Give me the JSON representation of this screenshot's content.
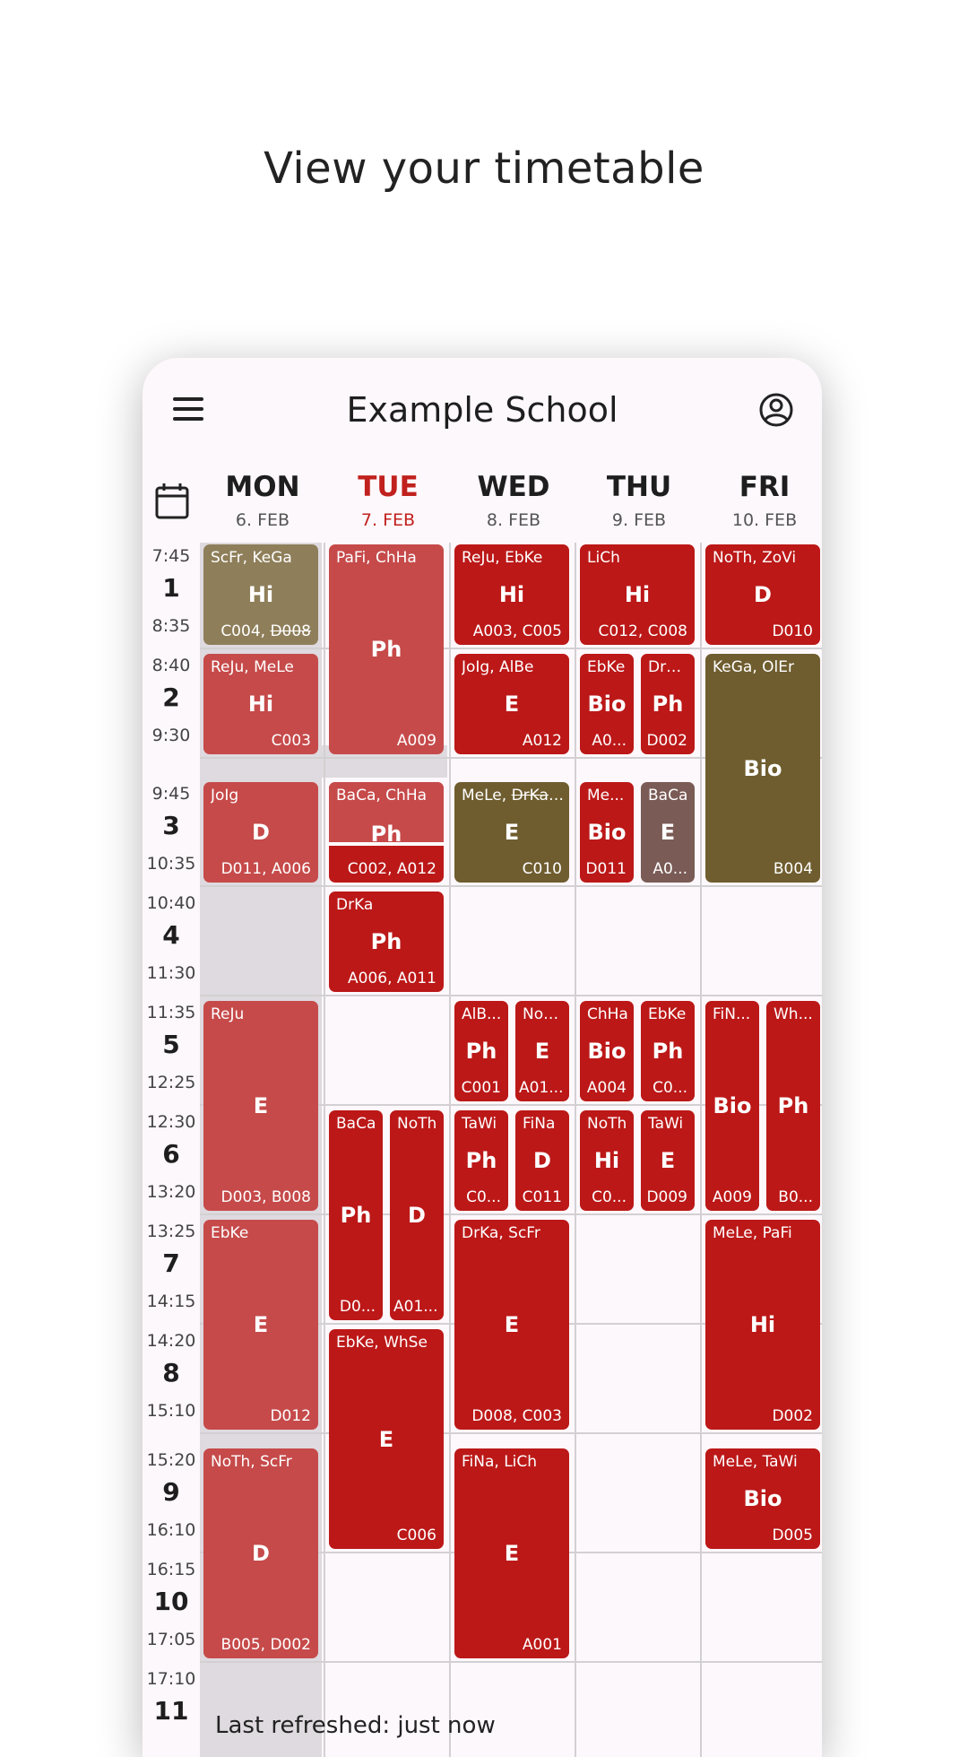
{
  "headline": "View your timetable",
  "app": {
    "title": "Example School",
    "menu_icon": "menu-icon",
    "account_icon": "account-circle-icon",
    "calendar_icon": "calendar-icon"
  },
  "colors": {
    "accent": "#c1211e",
    "lesson_red": "#bc1818",
    "lesson_pink": "#c64a4a",
    "lesson_olive": "#6f5d2f",
    "lesson_tan": "#8e7f5a",
    "lesson_brown": "#7a5b56"
  },
  "days": [
    {
      "name": "MON",
      "date": "6. FEB",
      "today": false
    },
    {
      "name": "TUE",
      "date": "7. FEB",
      "today": true
    },
    {
      "name": "WED",
      "date": "8. FEB",
      "today": false
    },
    {
      "name": "THU",
      "date": "9. FEB",
      "today": false
    },
    {
      "name": "FRI",
      "date": "10. FEB",
      "today": false
    }
  ],
  "periods": [
    {
      "num": "1",
      "start": "7:45",
      "end": "8:35"
    },
    {
      "num": "2",
      "start": "8:40",
      "end": "9:30"
    },
    {
      "num": "3",
      "start": "9:45",
      "end": "10:35"
    },
    {
      "num": "4",
      "start": "10:40",
      "end": "11:30"
    },
    {
      "num": "5",
      "start": "11:35",
      "end": "12:25"
    },
    {
      "num": "6",
      "start": "12:30",
      "end": "13:20"
    },
    {
      "num": "7",
      "start": "13:25",
      "end": "14:15"
    },
    {
      "num": "8",
      "start": "14:20",
      "end": "15:10"
    },
    {
      "num": "9",
      "start": "15:20",
      "end": "16:10"
    },
    {
      "num": "10",
      "start": "16:15",
      "end": "17:05"
    },
    {
      "num": "11",
      "start": "17:10",
      "end": ""
    }
  ],
  "lessons": [
    {
      "day": 0,
      "p": 1,
      "span": 1,
      "col": 0,
      "cols": 1,
      "color": "tan",
      "teachers": "ScFr, KeGa",
      "subject": "Hi",
      "room": "C004, ",
      "room_struck": "D008"
    },
    {
      "day": 0,
      "p": 2,
      "span": 1,
      "col": 0,
      "cols": 1,
      "color": "pink",
      "teachers": "ReJu, MeLe",
      "subject": "Hi",
      "room": "C003"
    },
    {
      "day": 0,
      "p": 3,
      "span": 1,
      "col": 0,
      "cols": 1,
      "color": "pink",
      "teachers": "JoIg",
      "subject": "D",
      "room": "D011, A006"
    },
    {
      "day": 0,
      "p": 5,
      "span": 2,
      "col": 0,
      "cols": 1,
      "color": "pink",
      "teachers": "ReJu",
      "subject": "E",
      "room": "D003, B008"
    },
    {
      "day": 0,
      "p": 7,
      "span": 2,
      "col": 0,
      "cols": 1,
      "color": "pink",
      "teachers": "EbKe",
      "subject": "E",
      "room": "D012"
    },
    {
      "day": 0,
      "p": 9,
      "span": 2,
      "col": 0,
      "cols": 1,
      "color": "pink",
      "teachers": "NoTh, ScFr",
      "subject": "D",
      "room": "B005, D002"
    },
    {
      "day": 1,
      "p": 1,
      "span": 2,
      "col": 0,
      "cols": 1,
      "color": "pink",
      "teachers": "PaFi, ChHa",
      "subject": "Ph",
      "room": "A009"
    },
    {
      "day": 1,
      "p": 3,
      "span": 1,
      "col": 0,
      "cols": 1,
      "color": "split",
      "teachers": "BaCa, ChHa",
      "subject": "Ph",
      "room": "C002, A012"
    },
    {
      "day": 1,
      "p": 4,
      "span": 1,
      "col": 0,
      "cols": 1,
      "color": "red",
      "teachers": "DrKa",
      "subject": "Ph",
      "room": "A006, A011"
    },
    {
      "day": 1,
      "p": 6,
      "span": 2,
      "col": 0,
      "cols": 2,
      "color": "red",
      "teachers": "BaCa",
      "subject": "Ph",
      "room": "D0..."
    },
    {
      "day": 1,
      "p": 6,
      "span": 2,
      "col": 1,
      "cols": 2,
      "color": "red",
      "teachers": "NoTh",
      "subject": "D",
      "room": "A01..."
    },
    {
      "day": 1,
      "p": 8,
      "span": 2,
      "col": 0,
      "cols": 1,
      "color": "red",
      "teachers": "EbKe, WhSe",
      "subject": "E",
      "room": "C006"
    },
    {
      "day": 2,
      "p": 1,
      "span": 1,
      "col": 0,
      "cols": 1,
      "color": "red",
      "teachers": "ReJu, EbKe",
      "subject": "Hi",
      "room": "A003, C005"
    },
    {
      "day": 2,
      "p": 2,
      "span": 1,
      "col": 0,
      "cols": 1,
      "color": "red",
      "teachers": "JoIg, AlBe",
      "subject": "E",
      "room": "A012"
    },
    {
      "day": 2,
      "p": 3,
      "span": 1,
      "col": 0,
      "cols": 1,
      "color": "olive",
      "teachers": "MeLe, ",
      "teachers_struck": "DrKa,...",
      "subject": "E",
      "room": "C010"
    },
    {
      "day": 2,
      "p": 5,
      "span": 1,
      "col": 0,
      "cols": 2,
      "color": "red",
      "teachers": "AlB...",
      "subject": "Ph",
      "room": "C001"
    },
    {
      "day": 2,
      "p": 5,
      "span": 1,
      "col": 1,
      "cols": 2,
      "color": "red",
      "teachers": "NoT...",
      "subject": "E",
      "room": "A01..."
    },
    {
      "day": 2,
      "p": 6,
      "span": 1,
      "col": 0,
      "cols": 2,
      "color": "red",
      "teachers": "TaWi",
      "subject": "Ph",
      "room": "C0..."
    },
    {
      "day": 2,
      "p": 6,
      "span": 1,
      "col": 1,
      "cols": 2,
      "color": "red",
      "teachers": "FiNa",
      "subject": "D",
      "room": "C011"
    },
    {
      "day": 2,
      "p": 7,
      "span": 2,
      "col": 0,
      "cols": 1,
      "color": "red",
      "teachers": "DrKa, ScFr",
      "subject": "E",
      "room": "D008, C003"
    },
    {
      "day": 2,
      "p": 9,
      "span": 2,
      "col": 0,
      "cols": 1,
      "color": "red",
      "teachers": "FiNa, LiCh",
      "subject": "E",
      "room": "A001"
    },
    {
      "day": 3,
      "p": 1,
      "span": 1,
      "col": 0,
      "cols": 1,
      "color": "red",
      "teachers": "LiCh",
      "subject": "Hi",
      "room": "C012, C008"
    },
    {
      "day": 3,
      "p": 2,
      "span": 1,
      "col": 0,
      "cols": 2,
      "color": "red",
      "teachers": "EbKe",
      "subject": "Bio",
      "room": "A0..."
    },
    {
      "day": 3,
      "p": 2,
      "span": 1,
      "col": 1,
      "cols": 2,
      "color": "red",
      "teachers": "DrK...",
      "subject": "Ph",
      "room": "D002"
    },
    {
      "day": 3,
      "p": 3,
      "span": 1,
      "col": 0,
      "cols": 2,
      "color": "red",
      "teachers": "Me...",
      "subject": "Bio",
      "room": "D011"
    },
    {
      "day": 3,
      "p": 3,
      "span": 1,
      "col": 1,
      "cols": 2,
      "color": "brown",
      "teachers": "BaCa",
      "subject": "E",
      "room": "A0..."
    },
    {
      "day": 3,
      "p": 5,
      "span": 1,
      "col": 0,
      "cols": 2,
      "color": "red",
      "teachers": "ChHa",
      "subject": "Bio",
      "room": "A004"
    },
    {
      "day": 3,
      "p": 5,
      "span": 1,
      "col": 1,
      "cols": 2,
      "color": "red",
      "teachers": "EbKe",
      "subject": "Ph",
      "room": "C0..."
    },
    {
      "day": 3,
      "p": 6,
      "span": 1,
      "col": 0,
      "cols": 2,
      "color": "red",
      "teachers": "NoTh",
      "subject": "Hi",
      "room": "C0..."
    },
    {
      "day": 3,
      "p": 6,
      "span": 1,
      "col": 1,
      "cols": 2,
      "color": "red",
      "teachers": "TaWi",
      "subject": "E",
      "room": "D009"
    },
    {
      "day": 4,
      "p": 1,
      "span": 1,
      "col": 0,
      "cols": 1,
      "color": "red",
      "teachers": "NoTh, ZoVi",
      "subject": "D",
      "room": "D010"
    },
    {
      "day": 4,
      "p": 2,
      "span": 2,
      "col": 0,
      "cols": 1,
      "color": "olive",
      "teachers": "KeGa, OlEr",
      "subject": "Bio",
      "room": "B004"
    },
    {
      "day": 4,
      "p": 5,
      "span": 2,
      "col": 0,
      "cols": 2,
      "color": "red",
      "teachers": "FiN...",
      "subject": "Bio",
      "room": "A009"
    },
    {
      "day": 4,
      "p": 5,
      "span": 2,
      "col": 1,
      "cols": 2,
      "color": "red",
      "teachers": "Wh...",
      "subject": "Ph",
      "room": "B0..."
    },
    {
      "day": 4,
      "p": 7,
      "span": 2,
      "col": 0,
      "cols": 1,
      "color": "red",
      "teachers": "MeLe, PaFi",
      "subject": "Hi",
      "room": "D002"
    },
    {
      "day": 4,
      "p": 9,
      "span": 1,
      "col": 0,
      "cols": 1,
      "color": "red",
      "teachers": "MeLe, TaWi",
      "subject": "Bio",
      "room": "D005"
    }
  ],
  "status": {
    "refresh_text": "Last refreshed: just now"
  }
}
